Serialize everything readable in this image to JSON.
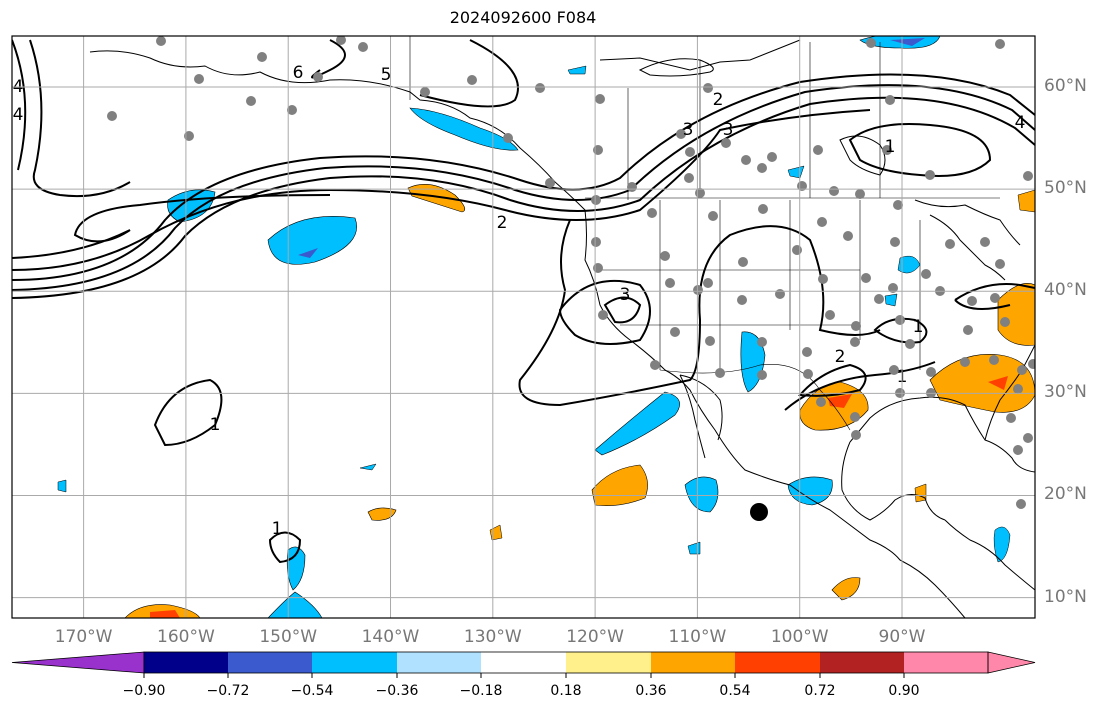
{
  "title": "2024092600 F084",
  "map": {
    "lon_labels": [
      "170°W",
      "160°W",
      "150°W",
      "140°W",
      "130°W",
      "120°W",
      "110°W",
      "100°W",
      "90°W"
    ],
    "lon_values": [
      -170,
      -160,
      -150,
      -140,
      -130,
      -120,
      -110,
      -100,
      -90
    ],
    "lat_labels": [
      "60°N",
      "50°N",
      "40°N",
      "30°N",
      "20°N",
      "10°N"
    ],
    "lat_values": [
      60,
      50,
      40,
      30,
      20,
      10
    ],
    "lon_range": [
      -177,
      -77
    ],
    "lat_range": [
      8,
      65
    ],
    "contour_labels": [
      "6",
      "5",
      "4",
      "4",
      "3",
      "2",
      "1",
      "1",
      "3",
      "2",
      "1",
      "1",
      "1",
      "2",
      "3",
      "4"
    ],
    "colors": {
      "land_outline": "#000000",
      "gridline": "#aaaaaa",
      "station_dot": "#808080",
      "marker": "#000000"
    }
  },
  "colorbar": {
    "colors": [
      "#9932cc",
      "#00008b",
      "#3a5acd",
      "#00bfff",
      "#b0e2ff",
      "#ffffff",
      "#fff08c",
      "#ffa500",
      "#ff4000",
      "#b22222",
      "#ff88aa",
      "#ff88aa"
    ],
    "tick_labels": [
      "−0.90",
      "−0.72",
      "−0.54",
      "−0.36",
      "−0.18",
      "0.18",
      "0.36",
      "0.54",
      "0.72",
      "0.90"
    ],
    "tick_values": [
      -0.9,
      -0.72,
      -0.54,
      -0.36,
      -0.18,
      0.18,
      0.36,
      0.54,
      0.72,
      0.9
    ],
    "range": [
      -1.08,
      1.08
    ]
  }
}
